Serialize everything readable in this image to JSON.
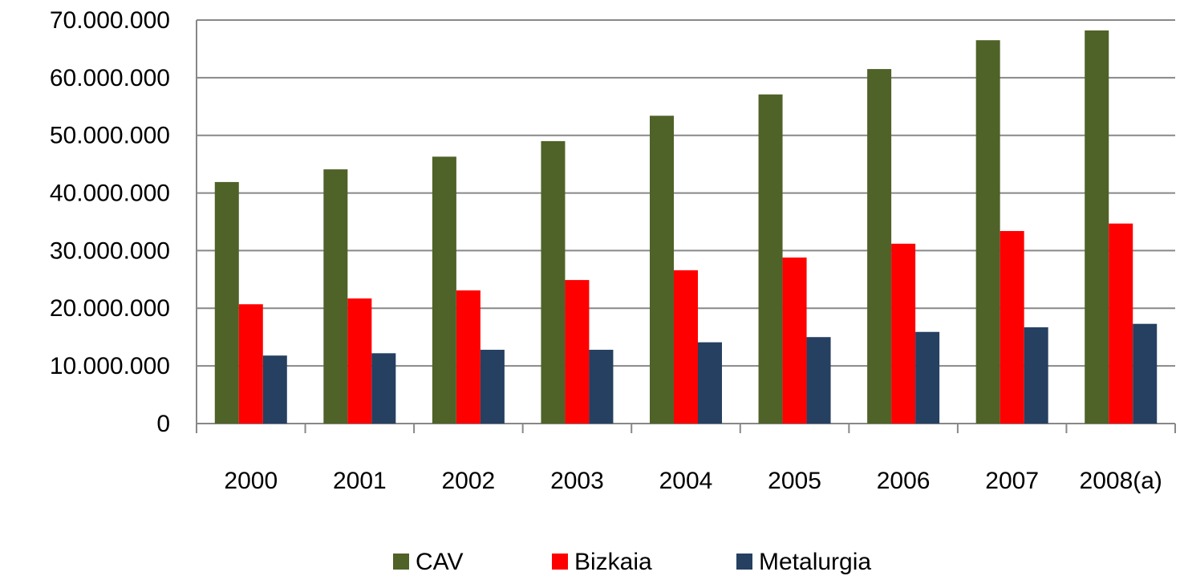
{
  "chart_data": {
    "type": "bar",
    "categories": [
      "2000",
      "2001",
      "2002",
      "2003",
      "2004",
      "2005",
      "2006",
      "2007",
      "2008(a)"
    ],
    "series": [
      {
        "name": "CAV",
        "color": "#4f6228",
        "values": [
          41900000,
          44100000,
          46300000,
          49000000,
          53400000,
          57100000,
          61500000,
          66500000,
          68200000
        ]
      },
      {
        "name": "Bizkaia",
        "color": "#ff0000",
        "values": [
          20700000,
          21700000,
          23100000,
          24900000,
          26600000,
          28800000,
          31200000,
          33400000,
          34700000
        ]
      },
      {
        "name": "Metalurgia",
        "color": "#254061",
        "values": [
          11800000,
          12200000,
          12800000,
          12800000,
          14100000,
          15000000,
          15900000,
          16700000,
          17300000
        ]
      }
    ],
    "ylim": [
      0,
      70000000
    ],
    "yticks": [
      0,
      {
        "value": 10000000,
        "label": "10.000.000"
      },
      {
        "value": 20000000,
        "label": "20.000.000"
      },
      {
        "value": 30000000,
        "label": "30.000.000"
      },
      {
        "value": 40000000,
        "label": "40.000.000"
      },
      {
        "value": 50000000,
        "label": "50.000.000"
      },
      {
        "value": 60000000,
        "label": "60.000.000"
      },
      {
        "value": 70000000,
        "label": "70.000.000"
      }
    ],
    "grid": true,
    "legend": "bottom"
  }
}
